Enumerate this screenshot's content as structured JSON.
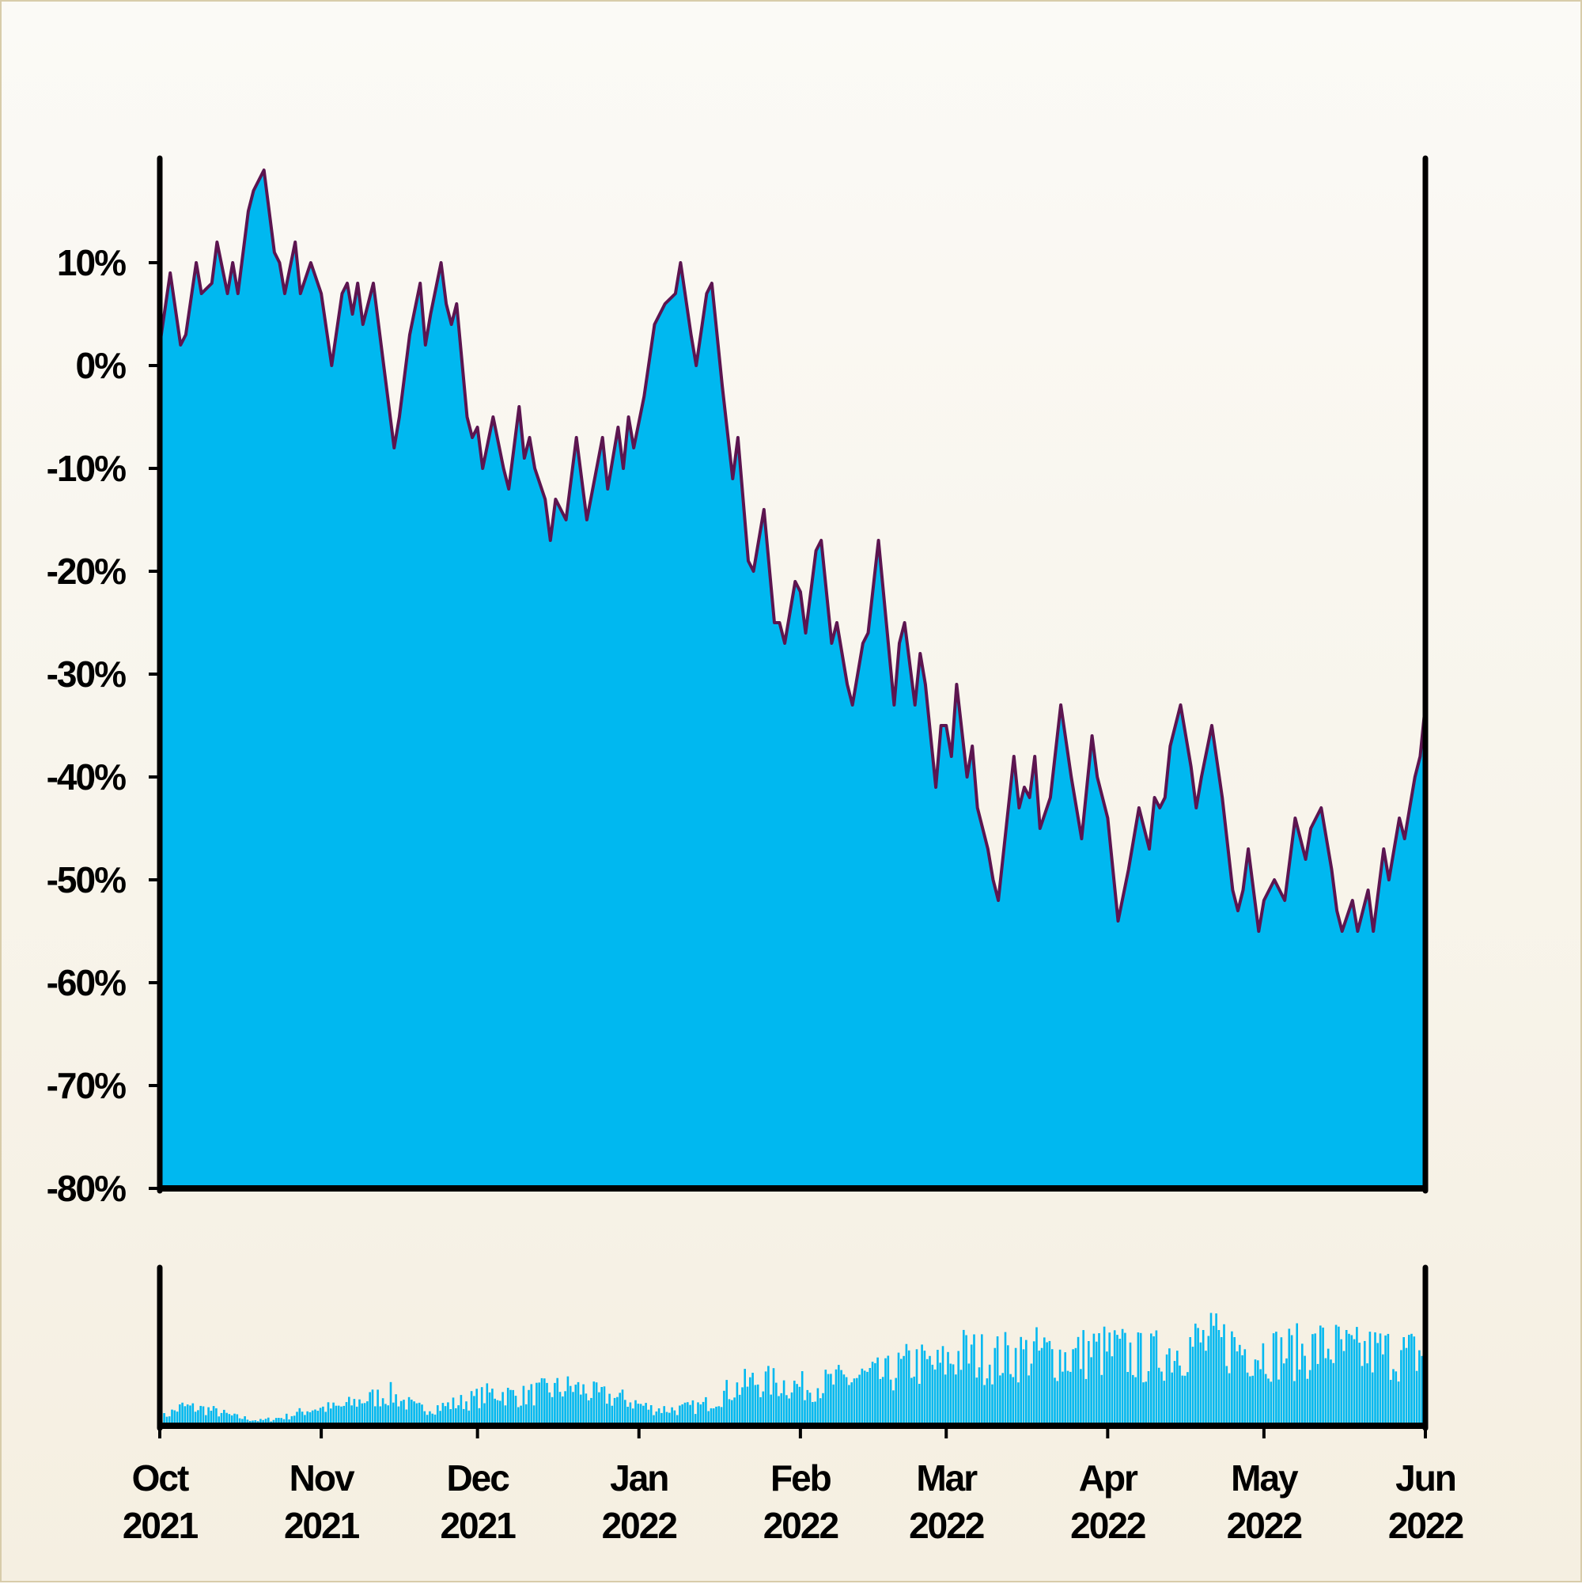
{
  "chart_data": [
    {
      "type": "area",
      "title": "",
      "xlabel": "",
      "ylabel": "",
      "x_range": [
        "2021-10-01",
        "2022-06-01"
      ],
      "ylim": [
        -80,
        20
      ],
      "y_ticks": [
        10,
        0,
        -10,
        -20,
        -30,
        -40,
        -50,
        -60,
        -70,
        -80
      ],
      "y_tick_labels": [
        "10%",
        "0%",
        "-10%",
        "-20%",
        "-30%",
        "-40%",
        "-50%",
        "-60%",
        "-70%",
        "-80%"
      ],
      "x_ticks": [
        "2021-10-01",
        "2021-11-01",
        "2021-12-01",
        "2022-01-01",
        "2022-02-01",
        "2022-03-01",
        "2022-04-01",
        "2022-05-01",
        "2022-06-01"
      ],
      "x_tick_labels": [
        [
          "Oct",
          "2021"
        ],
        [
          "Nov",
          "2021"
        ],
        [
          "Dec",
          "2021"
        ],
        [
          "Jan",
          "2022"
        ],
        [
          "Feb",
          "2022"
        ],
        [
          "Mar",
          "2022"
        ],
        [
          "Apr",
          "2022"
        ],
        [
          "May",
          "2022"
        ],
        [
          "Jun",
          "2022"
        ]
      ],
      "grid": false,
      "colors": {
        "fill": "#00b8f0",
        "line": "#5c1550"
      },
      "points": [
        [
          "2021-10-01",
          2
        ],
        [
          "2021-10-03",
          9
        ],
        [
          "2021-10-05",
          2
        ],
        [
          "2021-10-06",
          3
        ],
        [
          "2021-10-08",
          10
        ],
        [
          "2021-10-09",
          7
        ],
        [
          "2021-10-11",
          8
        ],
        [
          "2021-10-12",
          12
        ],
        [
          "2021-10-14",
          7
        ],
        [
          "2021-10-15",
          10
        ],
        [
          "2021-10-16",
          7
        ],
        [
          "2021-10-18",
          15
        ],
        [
          "2021-10-19",
          17
        ],
        [
          "2021-10-21",
          19
        ],
        [
          "2021-10-23",
          11
        ],
        [
          "2021-10-24",
          10
        ],
        [
          "2021-10-25",
          7
        ],
        [
          "2021-10-27",
          12
        ],
        [
          "2021-10-28",
          7
        ],
        [
          "2021-10-30",
          10
        ],
        [
          "2021-11-01",
          7
        ],
        [
          "2021-11-03",
          0
        ],
        [
          "2021-11-05",
          7
        ],
        [
          "2021-11-06",
          8
        ],
        [
          "2021-11-07",
          5
        ],
        [
          "2021-11-08",
          8
        ],
        [
          "2021-11-09",
          4
        ],
        [
          "2021-11-11",
          8
        ],
        [
          "2021-11-13",
          0
        ],
        [
          "2021-11-15",
          -8
        ],
        [
          "2021-11-16",
          -5
        ],
        [
          "2021-11-18",
          3
        ],
        [
          "2021-11-20",
          8
        ],
        [
          "2021-11-21",
          2
        ],
        [
          "2021-11-22",
          5
        ],
        [
          "2021-11-24",
          10
        ],
        [
          "2021-11-25",
          6
        ],
        [
          "2021-11-26",
          4
        ],
        [
          "2021-11-27",
          6
        ],
        [
          "2021-11-29",
          -5
        ],
        [
          "2021-11-30",
          -7
        ],
        [
          "2021-12-01",
          -6
        ],
        [
          "2021-12-02",
          -10
        ],
        [
          "2021-12-04",
          -5
        ],
        [
          "2021-12-06",
          -10
        ],
        [
          "2021-12-07",
          -12
        ],
        [
          "2021-12-09",
          -4
        ],
        [
          "2021-12-10",
          -9
        ],
        [
          "2021-12-11",
          -7
        ],
        [
          "2021-12-12",
          -10
        ],
        [
          "2021-12-14",
          -13
        ],
        [
          "2021-12-15",
          -17
        ],
        [
          "2021-12-16",
          -13
        ],
        [
          "2021-12-18",
          -15
        ],
        [
          "2021-12-20",
          -7
        ],
        [
          "2021-12-22",
          -15
        ],
        [
          "2021-12-25",
          -7
        ],
        [
          "2021-12-26",
          -12
        ],
        [
          "2021-12-28",
          -6
        ],
        [
          "2021-12-29",
          -10
        ],
        [
          "2021-12-30",
          -5
        ],
        [
          "2021-12-31",
          -8
        ],
        [
          "2022-01-02",
          -3
        ],
        [
          "2022-01-04",
          4
        ],
        [
          "2022-01-06",
          6
        ],
        [
          "2022-01-08",
          7
        ],
        [
          "2022-01-09",
          10
        ],
        [
          "2022-01-11",
          3
        ],
        [
          "2022-01-12",
          0
        ],
        [
          "2022-01-14",
          7
        ],
        [
          "2022-01-15",
          8
        ],
        [
          "2022-01-17",
          -2
        ],
        [
          "2022-01-19",
          -11
        ],
        [
          "2022-01-20",
          -7
        ],
        [
          "2022-01-22",
          -19
        ],
        [
          "2022-01-23",
          -20
        ],
        [
          "2022-01-25",
          -14
        ],
        [
          "2022-01-27",
          -25
        ],
        [
          "2022-01-28",
          -25
        ],
        [
          "2022-01-29",
          -27
        ],
        [
          "2022-01-31",
          -21
        ],
        [
          "2022-02-01",
          -22
        ],
        [
          "2022-02-02",
          -26
        ],
        [
          "2022-02-04",
          -18
        ],
        [
          "2022-02-05",
          -17
        ],
        [
          "2022-02-07",
          -27
        ],
        [
          "2022-02-08",
          -25
        ],
        [
          "2022-02-10",
          -31
        ],
        [
          "2022-02-11",
          -33
        ],
        [
          "2022-02-13",
          -27
        ],
        [
          "2022-02-14",
          -26
        ],
        [
          "2022-02-16",
          -17
        ],
        [
          "2022-02-19",
          -33
        ],
        [
          "2022-02-20",
          -27
        ],
        [
          "2022-02-21",
          -25
        ],
        [
          "2022-02-23",
          -33
        ],
        [
          "2022-02-24",
          -28
        ],
        [
          "2022-02-25",
          -31
        ],
        [
          "2022-02-27",
          -41
        ],
        [
          "2022-02-28",
          -35
        ],
        [
          "2022-03-01",
          -35
        ],
        [
          "2022-03-02",
          -38
        ],
        [
          "2022-03-03",
          -31
        ],
        [
          "2022-03-05",
          -40
        ],
        [
          "2022-03-06",
          -37
        ],
        [
          "2022-03-07",
          -43
        ],
        [
          "2022-03-09",
          -47
        ],
        [
          "2022-03-10",
          -50
        ],
        [
          "2022-03-11",
          -52
        ],
        [
          "2022-03-14",
          -38
        ],
        [
          "2022-03-15",
          -43
        ],
        [
          "2022-03-16",
          -41
        ],
        [
          "2022-03-17",
          -42
        ],
        [
          "2022-03-18",
          -38
        ],
        [
          "2022-03-19",
          -45
        ],
        [
          "2022-03-21",
          -42
        ],
        [
          "2022-03-23",
          -33
        ],
        [
          "2022-03-25",
          -40
        ],
        [
          "2022-03-27",
          -46
        ],
        [
          "2022-03-29",
          -36
        ],
        [
          "2022-03-30",
          -40
        ],
        [
          "2022-04-01",
          -44
        ],
        [
          "2022-04-03",
          -54
        ],
        [
          "2022-04-05",
          -49
        ],
        [
          "2022-04-07",
          -43
        ],
        [
          "2022-04-09",
          -47
        ],
        [
          "2022-04-10",
          -42
        ],
        [
          "2022-04-11",
          -43
        ],
        [
          "2022-04-12",
          -42
        ],
        [
          "2022-04-13",
          -37
        ],
        [
          "2022-04-15",
          -33
        ],
        [
          "2022-04-17",
          -39
        ],
        [
          "2022-04-18",
          -43
        ],
        [
          "2022-04-19",
          -40
        ],
        [
          "2022-04-21",
          -35
        ],
        [
          "2022-04-23",
          -42
        ],
        [
          "2022-04-25",
          -51
        ],
        [
          "2022-04-26",
          -53
        ],
        [
          "2022-04-27",
          -51
        ],
        [
          "2022-04-28",
          -47
        ],
        [
          "2022-04-30",
          -55
        ],
        [
          "2022-05-01",
          -52
        ],
        [
          "2022-05-03",
          -50
        ],
        [
          "2022-05-05",
          -52
        ],
        [
          "2022-05-07",
          -44
        ],
        [
          "2022-05-09",
          -48
        ],
        [
          "2022-05-10",
          -45
        ],
        [
          "2022-05-12",
          -43
        ],
        [
          "2022-05-14",
          -49
        ],
        [
          "2022-05-15",
          -53
        ],
        [
          "2022-05-16",
          -55
        ],
        [
          "2022-05-18",
          -52
        ],
        [
          "2022-05-19",
          -55
        ],
        [
          "2022-05-21",
          -51
        ],
        [
          "2022-05-22",
          -55
        ],
        [
          "2022-05-24",
          -47
        ],
        [
          "2022-05-25",
          -50
        ],
        [
          "2022-05-27",
          -44
        ],
        [
          "2022-05-28",
          -46
        ],
        [
          "2022-05-29",
          -43
        ],
        [
          "2022-05-30",
          -40
        ],
        [
          "2022-05-31",
          -38
        ],
        [
          "2022-06-01",
          -33
        ]
      ]
    },
    {
      "type": "bar",
      "title": "",
      "xlabel": "",
      "ylabel": "",
      "x_range": [
        "2021-10-01",
        "2022-06-01"
      ],
      "ylim": [
        0,
        1
      ],
      "grid": false,
      "colors": {
        "bar": "#00b8f0"
      },
      "bars": [
        [
          "2021-10-01",
          0.08
        ],
        [
          "2021-10-05",
          0.19
        ],
        [
          "2021-10-10",
          0.16
        ],
        [
          "2021-10-15",
          0.09
        ],
        [
          "2021-10-20",
          0.05
        ],
        [
          "2021-10-25",
          0.09
        ],
        [
          "2021-10-30",
          0.17
        ],
        [
          "2021-11-04",
          0.18
        ],
        [
          "2021-11-09",
          0.26
        ],
        [
          "2021-11-14",
          0.31
        ],
        [
          "2021-11-19",
          0.17
        ],
        [
          "2021-11-24",
          0.19
        ],
        [
          "2021-11-29",
          0.25
        ],
        [
          "2021-12-04",
          0.33
        ],
        [
          "2021-12-09",
          0.29
        ],
        [
          "2021-12-14",
          0.35
        ],
        [
          "2021-12-19",
          0.38
        ],
        [
          "2021-12-24",
          0.3
        ],
        [
          "2021-12-29",
          0.26
        ],
        [
          "2022-01-03",
          0.17
        ],
        [
          "2022-01-08",
          0.16
        ],
        [
          "2022-01-13",
          0.2
        ],
        [
          "2022-01-18",
          0.35
        ],
        [
          "2022-01-23",
          0.44
        ],
        [
          "2022-01-28",
          0.42
        ],
        [
          "2022-02-02",
          0.38
        ],
        [
          "2022-02-07",
          0.43
        ],
        [
          "2022-02-12",
          0.48
        ],
        [
          "2022-02-17",
          0.49
        ],
        [
          "2022-02-22",
          0.62
        ],
        [
          "2022-02-27",
          0.58
        ],
        [
          "2022-03-04",
          0.72
        ],
        [
          "2022-03-09",
          0.66
        ],
        [
          "2022-03-14",
          0.7
        ],
        [
          "2022-03-19",
          0.72
        ],
        [
          "2022-03-24",
          0.68
        ],
        [
          "2022-03-29",
          0.74
        ],
        [
          "2022-04-03",
          0.73
        ],
        [
          "2022-04-08",
          0.66
        ],
        [
          "2022-04-13",
          0.74
        ],
        [
          "2022-04-18",
          0.82
        ],
        [
          "2022-04-23",
          0.81
        ],
        [
          "2022-04-28",
          0.75
        ],
        [
          "2022-05-03",
          0.72
        ],
        [
          "2022-05-08",
          0.73
        ],
        [
          "2022-05-13",
          0.79
        ],
        [
          "2022-05-18",
          0.71
        ],
        [
          "2022-05-23",
          0.73
        ],
        [
          "2022-05-28",
          0.7
        ],
        [
          "2022-06-01",
          0.72
        ]
      ]
    }
  ]
}
